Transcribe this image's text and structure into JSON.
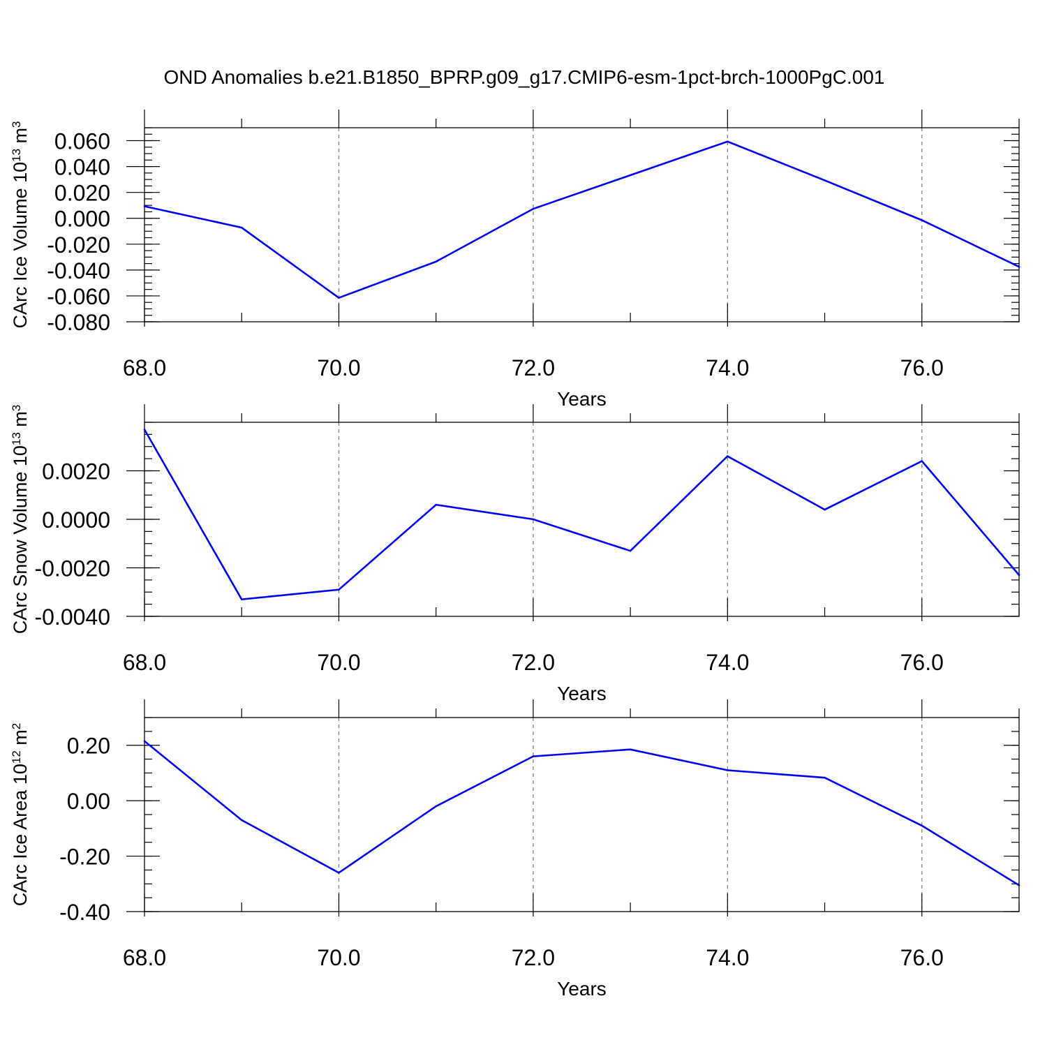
{
  "figure": {
    "title": "OND Anomalies b.e21.B1850_BPRP.g09_g17.CMIP6-esm-1pct-brch-1000PgC.001",
    "line_color": "#0000ff"
  },
  "chart_data": [
    {
      "type": "line",
      "xlabel": "Years",
      "ylabel": {
        "text": "CArc Ice Volume 10",
        "sup": "13",
        "unit": " m",
        "unit_sup": "3"
      },
      "xlim": [
        68,
        77
      ],
      "ylim": [
        -0.08,
        0.07
      ],
      "x_ticks": [
        68,
        70,
        72,
        74,
        76
      ],
      "x_tick_labels": [
        "68.0",
        "70.0",
        "72.0",
        "74.0",
        "76.0"
      ],
      "y_ticks": [
        -0.08,
        -0.06,
        -0.04,
        -0.02,
        0.0,
        0.02,
        0.04,
        0.06
      ],
      "y_tick_labels": [
        "-0.080",
        "-0.060",
        "-0.040",
        "-0.020",
        "0.000",
        "0.020",
        "0.040",
        "0.060"
      ],
      "y_minor_step": 0.005,
      "grid": "vertical-dashed",
      "x": [
        68,
        69,
        70,
        71,
        72,
        73,
        74,
        75,
        76,
        77
      ],
      "series": [
        {
          "values": [
            0.0093,
            -0.0072,
            -0.0615,
            -0.0335,
            0.0073,
            0.0333,
            0.0593,
            0.0293,
            -0.0015,
            -0.0375
          ]
        }
      ]
    },
    {
      "type": "line",
      "xlabel": "Years",
      "ylabel": {
        "text": "CArc Snow Volume 10",
        "sup": "13",
        "unit": " m",
        "unit_sup": "3"
      },
      "xlim": [
        68,
        77
      ],
      "ylim": [
        -0.004,
        0.004
      ],
      "x_ticks": [
        68,
        70,
        72,
        74,
        76
      ],
      "x_tick_labels": [
        "68.0",
        "70.0",
        "72.0",
        "74.0",
        "76.0"
      ],
      "y_ticks": [
        -0.004,
        -0.002,
        0.0,
        0.002
      ],
      "y_tick_labels": [
        "-0.0040",
        "-0.0020",
        "0.0000",
        "0.0020"
      ],
      "y_minor_step": 0.0005,
      "grid": "vertical-dashed",
      "x": [
        68,
        69,
        70,
        71,
        72,
        73,
        74,
        75,
        76,
        77
      ],
      "series": [
        {
          "values": [
            0.0037,
            -0.0033,
            -0.0029,
            0.0006,
            0.0,
            -0.0013,
            0.0026,
            0.0004,
            0.0024,
            -0.0023
          ]
        }
      ]
    },
    {
      "type": "line",
      "xlabel": "Years",
      "ylabel": {
        "text": "CArc Ice Area 10",
        "sup": "12",
        "unit": " m",
        "unit_sup": "2"
      },
      "xlim": [
        68,
        77
      ],
      "ylim": [
        -0.4,
        0.3
      ],
      "x_ticks": [
        68,
        70,
        72,
        74,
        76
      ],
      "x_tick_labels": [
        "68.0",
        "70.0",
        "72.0",
        "74.0",
        "76.0"
      ],
      "y_ticks": [
        -0.4,
        -0.2,
        0.0,
        0.2
      ],
      "y_tick_labels": [
        "-0.40",
        "-0.20",
        "0.00",
        "0.20"
      ],
      "y_minor_step": 0.05,
      "grid": "vertical-dashed",
      "x": [
        68,
        69,
        70,
        71,
        72,
        73,
        74,
        75,
        76,
        77
      ],
      "series": [
        {
          "values": [
            0.215,
            -0.07,
            -0.26,
            -0.02,
            0.16,
            0.185,
            0.11,
            0.083,
            -0.09,
            -0.305
          ]
        }
      ]
    }
  ]
}
